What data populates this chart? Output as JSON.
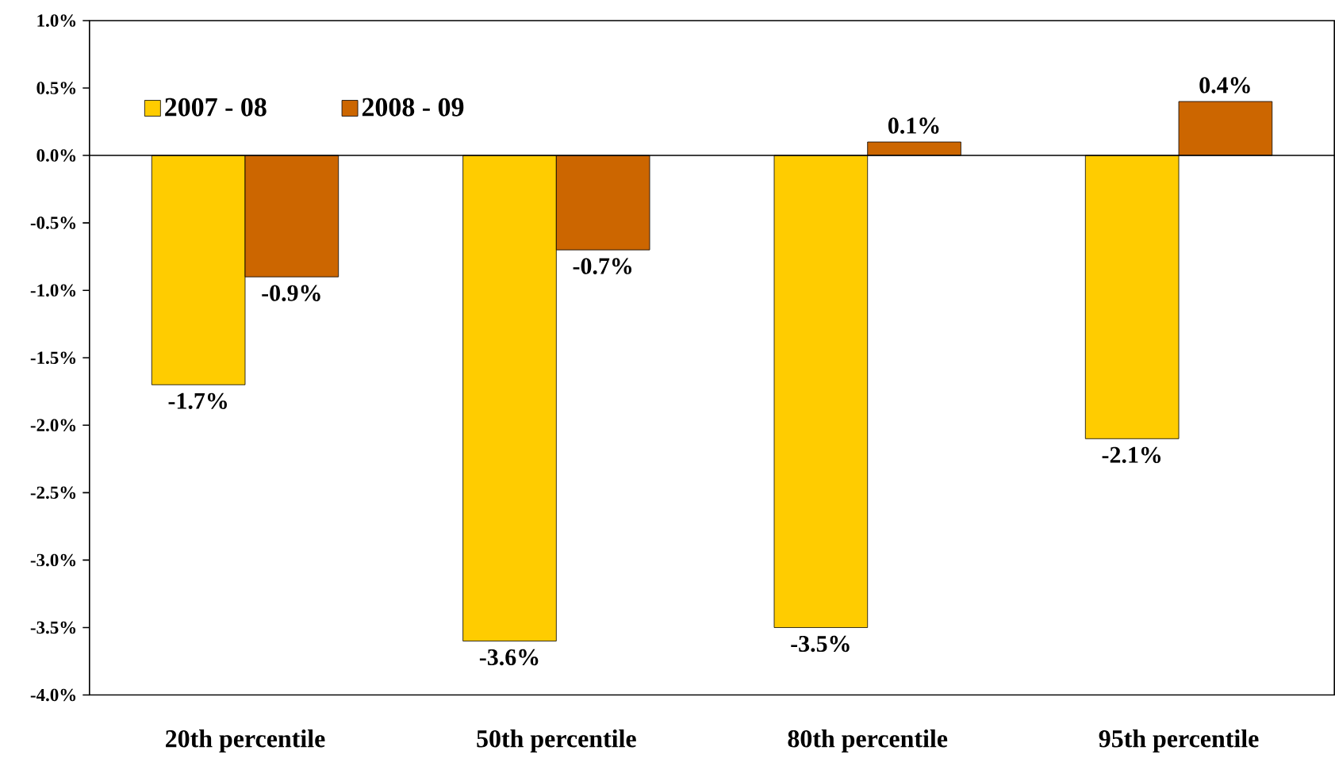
{
  "chart_data": {
    "type": "bar",
    "categories": [
      "20th percentile",
      "50th percentile",
      "80th percentile",
      "95th percentile"
    ],
    "series": [
      {
        "name": "2007 - 08",
        "color": "#ffcc00",
        "values": [
          -1.7,
          -3.6,
          -3.5,
          -2.1
        ],
        "value_labels": [
          "-1.7%",
          "-3.6%",
          "-3.5%",
          "-2.1%"
        ]
      },
      {
        "name": "2008 - 09",
        "color": "#cc6600",
        "values": [
          -0.9,
          -0.7,
          0.1,
          0.4
        ],
        "value_labels": [
          "-0.9%",
          "-0.7%",
          "0.1%",
          "0.4%"
        ]
      }
    ],
    "ylim": [
      -4.0,
      1.0
    ],
    "yticks": [
      {
        "value": -4.0,
        "label": "-4.0%"
      },
      {
        "value": -3.5,
        "label": "-3.5%"
      },
      {
        "value": -3.0,
        "label": "-3.0%"
      },
      {
        "value": -2.5,
        "label": "-2.5%"
      },
      {
        "value": -2.0,
        "label": "-2.0%"
      },
      {
        "value": -1.5,
        "label": "-1.5%"
      },
      {
        "value": -1.0,
        "label": "-1.0%"
      },
      {
        "value": -0.5,
        "label": "-0.5%"
      },
      {
        "value": 0.0,
        "label": "0.0%"
      },
      {
        "value": 0.5,
        "label": "0.5%"
      },
      {
        "value": 1.0,
        "label": "1.0%"
      }
    ],
    "legend": "top left"
  }
}
